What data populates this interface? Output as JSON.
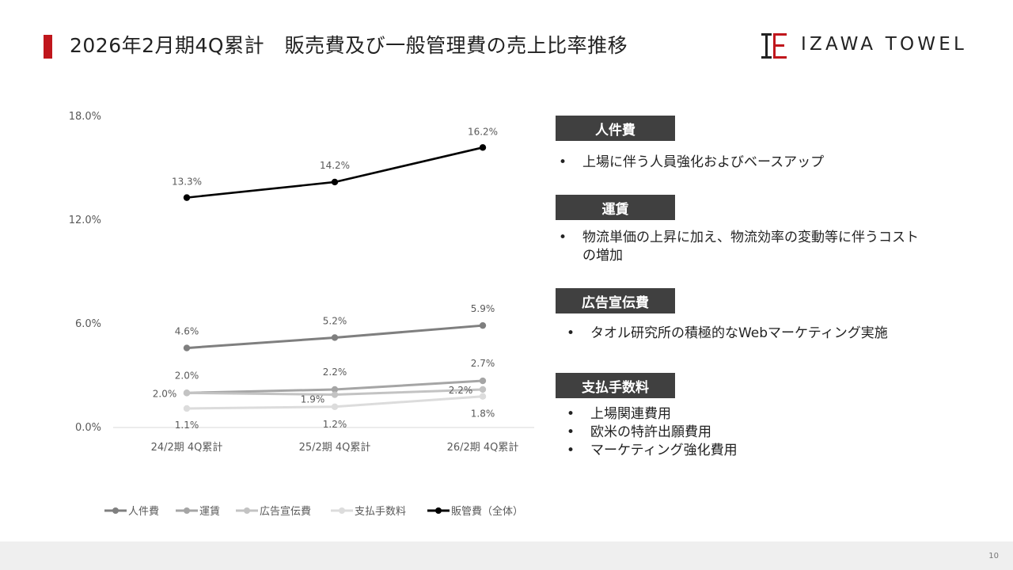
{
  "title": "2026年2月期4Q累計　販売費及び一般管理費の売上比率推移",
  "brand": "IZAWA TOWEL",
  "page_number": "10",
  "colors": {
    "accent": "#c0161c",
    "dark": "#404040"
  },
  "chart_data": {
    "type": "line",
    "categories": [
      "24/2期 4Q累計",
      "25/2期 4Q累計",
      "26/2期 4Q累計"
    ],
    "y_ticks": [
      "0.0%",
      "6.0%",
      "12.0%",
      "18.0%"
    ],
    "ylim": [
      0,
      18
    ],
    "legend_position": "bottom",
    "series": [
      {
        "name": "人件費",
        "values": [
          4.6,
          5.2,
          5.9
        ],
        "labels": [
          "4.6%",
          "5.2%",
          "5.9%"
        ],
        "color": "#7f7f7f"
      },
      {
        "name": "運賃",
        "values": [
          2.0,
          2.2,
          2.7
        ],
        "labels": [
          "2.0%",
          "2.2%",
          "2.7%"
        ],
        "color": "#a5a5a5"
      },
      {
        "name": "広告宣伝費",
        "values": [
          2.0,
          1.9,
          2.2
        ],
        "labels": [
          "2.0%",
          "1.9%",
          "2.2%"
        ],
        "color": "#c3c3c3"
      },
      {
        "name": "支払手数料",
        "values": [
          1.1,
          1.2,
          1.8
        ],
        "labels": [
          "1.1%",
          "1.2%",
          "1.8%"
        ],
        "color": "#dcdcdc"
      },
      {
        "name": "販管費（全体）",
        "values": [
          13.3,
          14.2,
          16.2
        ],
        "labels": [
          "13.3%",
          "14.2%",
          "16.2%"
        ],
        "color": "#000000"
      }
    ]
  },
  "categories_panel": [
    {
      "heading": "人件費",
      "items": [
        "上場に伴う人員強化およびベースアップ"
      ]
    },
    {
      "heading": "運賃",
      "items": [
        "物流単価の上昇に加え、物流効率の変動等に伴うコストの増加"
      ]
    },
    {
      "heading": "広告宣伝費",
      "items": [
        "タオル研究所の積極的なWebマーケティング実施"
      ]
    },
    {
      "heading": "支払手数料",
      "items": [
        "上場関連費用",
        "欧米の特許出願費用",
        "マーケティング強化費用"
      ]
    }
  ]
}
